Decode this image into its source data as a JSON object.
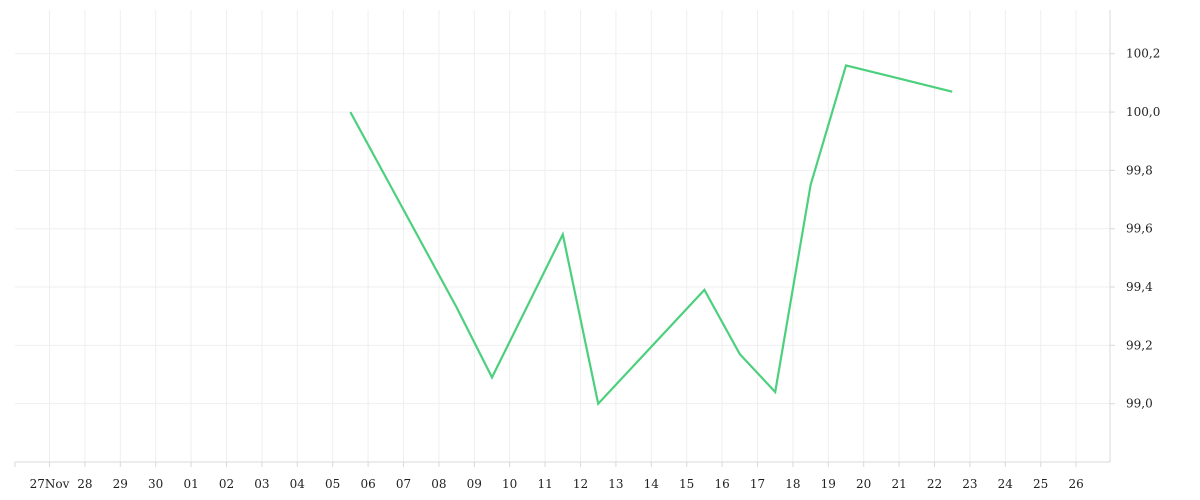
{
  "chart_data": {
    "type": "line",
    "x_tick_labels": [
      "27Nov",
      "28",
      "29",
      "30",
      "01",
      "02",
      "03",
      "04",
      "05",
      "06",
      "07",
      "08",
      "09",
      "10",
      "11",
      "12",
      "13",
      "14",
      "15",
      "16",
      "17",
      "18",
      "19",
      "20",
      "21",
      "22",
      "23",
      "24",
      "25",
      "26"
    ],
    "y_ticks": [
      99.0,
      99.2,
      99.4,
      99.6,
      99.8,
      100.0,
      100.2
    ],
    "y_tick_labels": [
      "99,0",
      "99,2",
      "99,4",
      "99,6",
      "99,8",
      "100,0",
      "100,2"
    ],
    "ylim": [
      98.8,
      100.35
    ],
    "y_axis_position": "right",
    "grid": true,
    "series": [
      {
        "color": "#4cd07d",
        "x": [
          "2023-12-05T12:00",
          "2023-12-08T12:00",
          "2023-12-09T12:00",
          "2023-12-11T12:00",
          "2023-12-12T12:00",
          "2023-12-15T12:00",
          "2023-12-16T12:00",
          "2023-12-17T12:00",
          "2023-12-18T12:00",
          "2023-12-19T12:00",
          "2023-12-22T12:00"
        ],
        "y": [
          100.0,
          99.33,
          99.09,
          99.58,
          99.0,
          99.39,
          99.17,
          99.04,
          99.75,
          100.16,
          100.07
        ]
      }
    ],
    "title": "",
    "xlabel": "",
    "ylabel": ""
  }
}
